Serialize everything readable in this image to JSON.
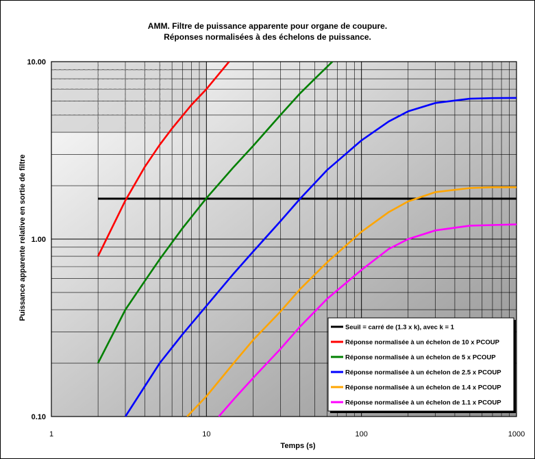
{
  "chart_data": {
    "type": "line",
    "title": "AMM. Filtre de puissance apparente pour organe de coupure.",
    "subtitle": "Réponses normalisées à des échelons de puissance.",
    "xlabel": "Temps (s)",
    "ylabel": "Puissance apparente relative en sortie de filtre",
    "x_scale": "log",
    "y_scale": "log",
    "xlim": [
      1,
      1000
    ],
    "ylim": [
      0.1,
      10
    ],
    "x_ticks": [
      "1",
      "10",
      "100",
      "1000"
    ],
    "y_ticks": [
      "0.10",
      "1.00",
      "10.00"
    ],
    "grid": true,
    "legend_position": "bottom-right",
    "series": [
      {
        "name": "Seuil = carré de (1.3 x k), avec k = 1",
        "color": "#000000",
        "x": [
          2,
          1000
        ],
        "y": [
          1.69,
          1.69
        ]
      },
      {
        "name": "Réponse normalisée à un échelon de 10 x PCOUP",
        "color": "#ff0000",
        "x": [
          2,
          3,
          4,
          5,
          6,
          8,
          10,
          12,
          14
        ],
        "y": [
          0.8,
          1.65,
          2.55,
          3.4,
          4.2,
          5.7,
          7.0,
          8.5,
          10.0
        ]
      },
      {
        "name": "Réponse normalisée à un échelon de 5 x PCOUP",
        "color": "#008000",
        "x": [
          2,
          3,
          4,
          5,
          7,
          10,
          15,
          20,
          30,
          40,
          50,
          65
        ],
        "y": [
          0.2,
          0.4,
          0.58,
          0.77,
          1.15,
          1.7,
          2.55,
          3.35,
          5.0,
          6.6,
          8.0,
          10.0
        ]
      },
      {
        "name": "Réponse normalisée à un échelon de 2.5 x PCOUP",
        "color": "#0000ff",
        "x": [
          3,
          5,
          7,
          10,
          15,
          20,
          30,
          40,
          60,
          100,
          150,
          200,
          300,
          500,
          700,
          1000
        ],
        "y": [
          0.1,
          0.2,
          0.29,
          0.42,
          0.64,
          0.85,
          1.26,
          1.68,
          2.45,
          3.6,
          4.6,
          5.25,
          5.85,
          6.18,
          6.23,
          6.25
        ]
      },
      {
        "name": "Réponse normalisée à un échelon de 1.4 x PCOUP",
        "color": "#ffa500",
        "x": [
          7.5,
          10,
          15,
          20,
          30,
          40,
          60,
          100,
          150,
          200,
          300,
          500,
          700,
          1000
        ],
        "y": [
          0.1,
          0.13,
          0.2,
          0.27,
          0.39,
          0.52,
          0.74,
          1.1,
          1.42,
          1.63,
          1.84,
          1.94,
          1.96,
          1.96
        ]
      },
      {
        "name": "Réponse normalisée à un échelon de 1.1 x PCOUP",
        "color": "#ff00ff",
        "x": [
          12,
          15,
          20,
          30,
          40,
          60,
          100,
          150,
          200,
          300,
          500,
          700,
          1000
        ],
        "y": [
          0.1,
          0.125,
          0.165,
          0.24,
          0.32,
          0.46,
          0.67,
          0.88,
          1.0,
          1.12,
          1.19,
          1.2,
          1.21
        ]
      }
    ]
  }
}
